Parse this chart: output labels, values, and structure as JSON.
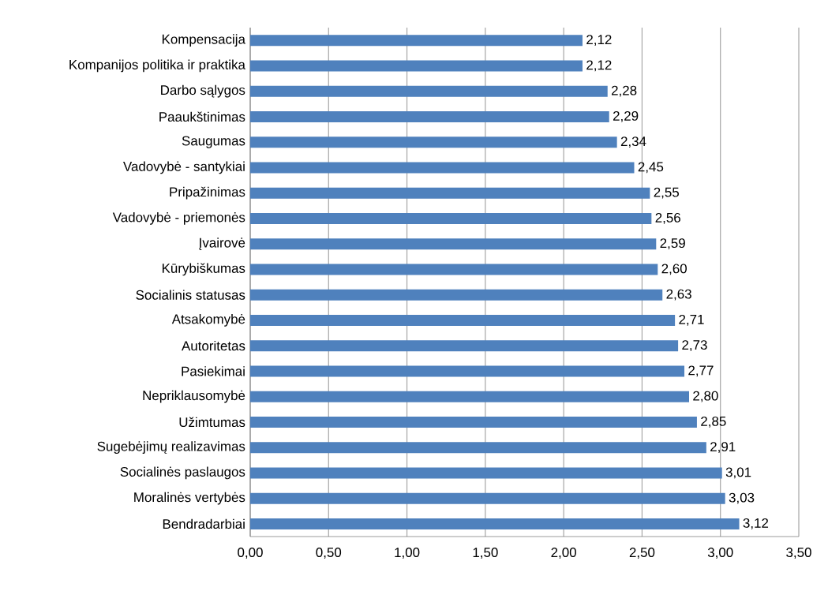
{
  "chart_data": {
    "type": "bar",
    "orientation": "horizontal",
    "categories": [
      "Kompensacija",
      "Kompanijos politika ir praktika",
      "Darbo sąlygos",
      "Paaukštinimas",
      "Saugumas",
      "Vadovybė - santykiai",
      "Pripažinimas",
      "Vadovybė - priemonės",
      "Įvairovė",
      "Kūrybiškumas",
      "Socialinis statusas",
      "Atsakomybė",
      "Autoritetas",
      "Pasiekimai",
      "Nepriklausomybė",
      "Užimtumas",
      "Sugebėjimų realizavimas",
      "Socialinės paslaugos",
      "Moralinės vertybės",
      "Bendradarbiai"
    ],
    "values": [
      2.12,
      2.12,
      2.28,
      2.29,
      2.34,
      2.45,
      2.55,
      2.56,
      2.59,
      2.6,
      2.63,
      2.71,
      2.73,
      2.77,
      2.8,
      2.85,
      2.91,
      3.01,
      3.03,
      3.12
    ],
    "value_labels": [
      "2,12",
      "2,12",
      "2,28",
      "2,29",
      "2,34",
      "2,45",
      "2,55",
      "2,56",
      "2,59",
      "2,60",
      "2,63",
      "2,71",
      "2,73",
      "2,77",
      "2,80",
      "2,85",
      "2,91",
      "3,01",
      "3,03",
      "3,12"
    ],
    "color": "#4f81bd",
    "xlim": [
      0,
      3.5
    ],
    "xticks": [
      {
        "value": 0,
        "label": "0,00"
      },
      {
        "value": 0.5,
        "label": "0,50"
      },
      {
        "value": 1,
        "label": "1,00"
      },
      {
        "value": 1.5,
        "label": "1,50"
      },
      {
        "value": 2,
        "label": "2,00"
      },
      {
        "value": 2.5,
        "label": "2,50"
      },
      {
        "value": 3,
        "label": "3,00"
      },
      {
        "value": 3.5,
        "label": "3,50"
      }
    ],
    "grid": "x"
  }
}
